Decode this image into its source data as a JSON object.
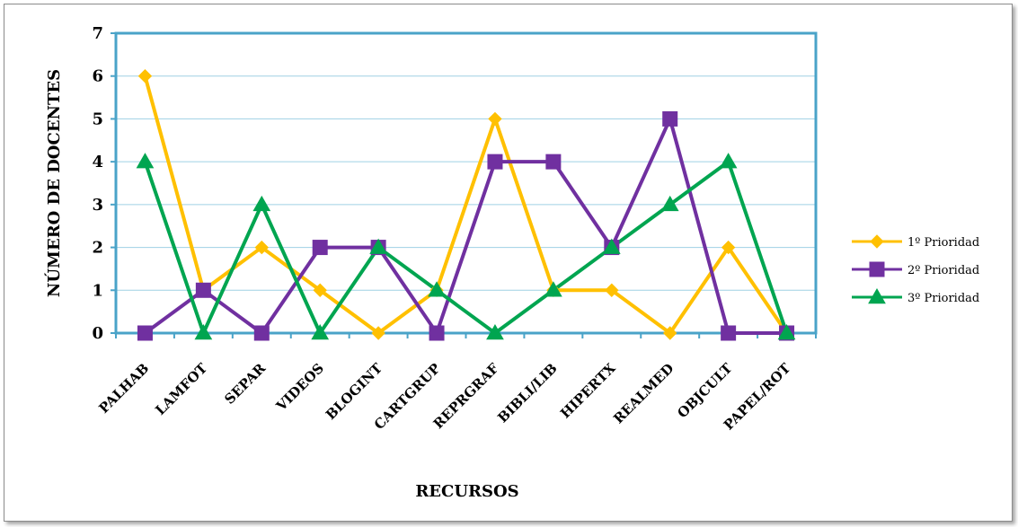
{
  "chart_data": {
    "type": "line",
    "title": "",
    "xlabel": "RECURSOS",
    "ylabel": "NÚMERO DE DOCENTES",
    "categories": [
      "PALHAB",
      "LAMFOT",
      "SEPAR",
      "VIDEOS",
      "BLOGINT",
      "CARTGRUP",
      "REPRGRAF",
      "BIBLI/LIB",
      "HIPERTX",
      "REALMED",
      "OBJCULT",
      "PAPEL/ROT"
    ],
    "ylim": [
      0,
      7
    ],
    "yticks": [
      "0",
      "1",
      "2",
      "3",
      "4",
      "5",
      "6",
      "7"
    ],
    "grid": true,
    "legend_position": "right",
    "series": [
      {
        "name": "1º Prioridad",
        "color": "#FFC000",
        "marker": "diamond",
        "values": [
          6,
          1,
          2,
          1,
          0,
          1,
          5,
          1,
          1,
          0,
          2,
          0
        ]
      },
      {
        "name": "2º Prioridad",
        "color": "#7030A0",
        "marker": "square",
        "values": [
          0,
          1,
          0,
          2,
          2,
          0,
          4,
          4,
          2,
          5,
          0,
          0
        ]
      },
      {
        "name": "3º Prioridad",
        "color": "#00A550",
        "marker": "triangle",
        "values": [
          4,
          0,
          3,
          0,
          2,
          1,
          0,
          1,
          2,
          3,
          4,
          0
        ]
      }
    ]
  }
}
